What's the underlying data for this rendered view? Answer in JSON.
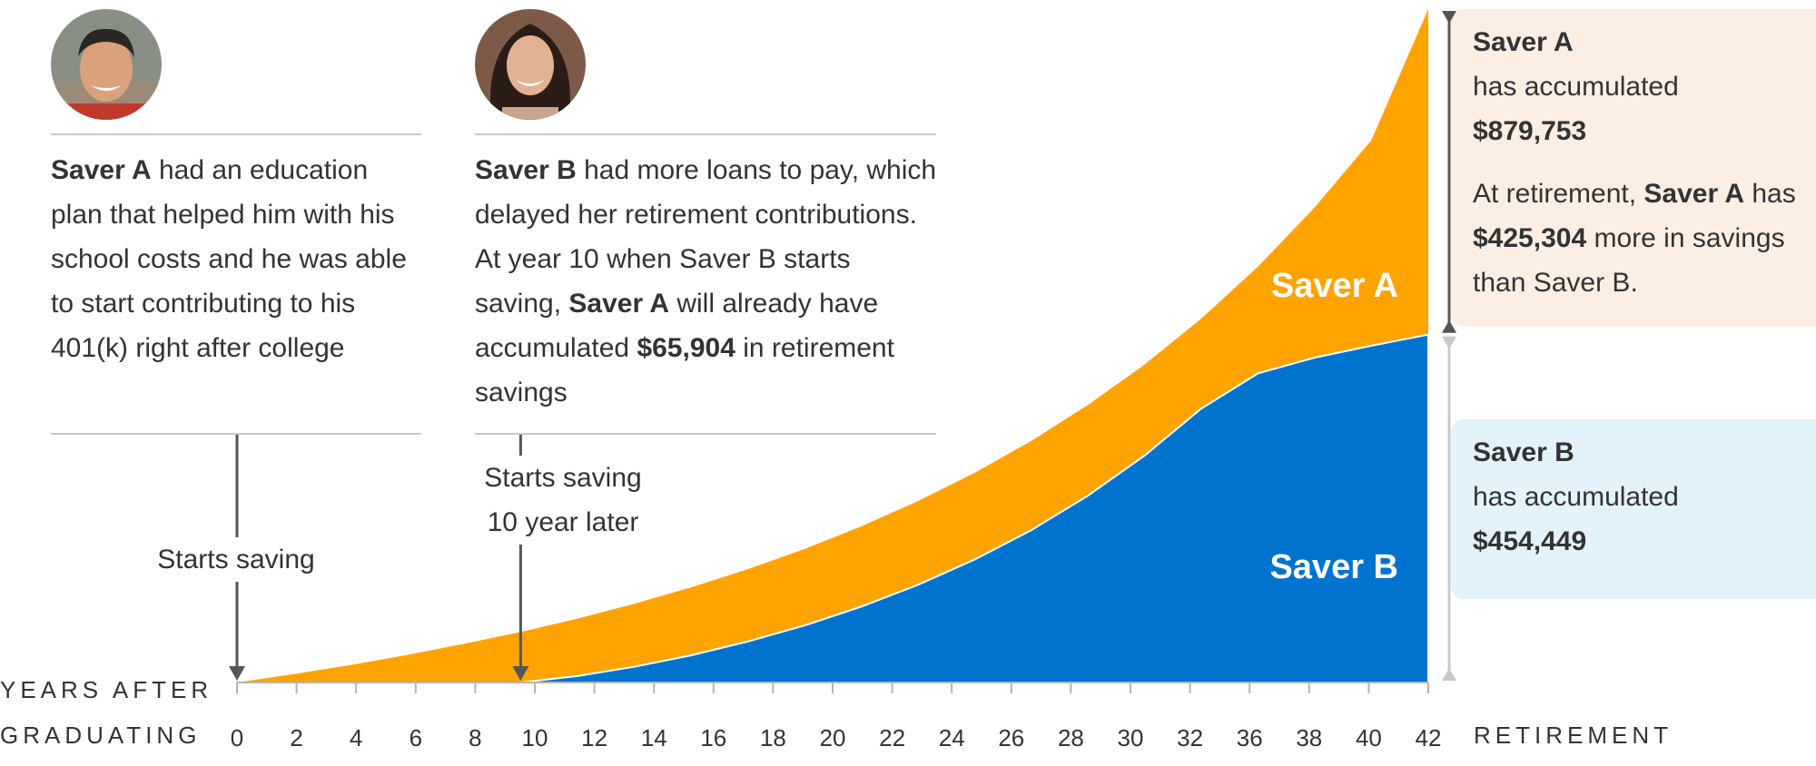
{
  "saver_a_story": {
    "name": "Saver A",
    "text": " had an education plan that helped him with his school costs and he was able to start contributing to his 401(k) right after college"
  },
  "saver_b_story": {
    "name": "Saver B",
    "text1": " had more loans to pay, which delayed her retirement contributions. At year 10 when Saver B starts saving, ",
    "bold": "Saver A",
    "text2": " will already have accumulated ",
    "amount": "$65,904",
    "text3": " in retirement savings"
  },
  "annotations": {
    "start_a": "Starts saving",
    "start_b_line1": "Starts saving",
    "start_b_line2": "10 year later"
  },
  "result_a": {
    "name": "Saver A",
    "line1": "has accumulated",
    "amount": "$879,753",
    "note_pre": "At retirement, ",
    "note_bold": "Saver A",
    "note_mid": " has ",
    "note_amount": "$425,304",
    "note_post": " more in savings than Saver B."
  },
  "result_b": {
    "name": "Saver B",
    "line1": "has accumulated",
    "amount": "$454,449"
  },
  "axis": {
    "xlabel_line1": "YEARS AFTER",
    "xlabel_line2": "GRADUATING",
    "end_label": "RETIREMENT"
  },
  "colors": {
    "saver_a": "#FFA300",
    "saver_b": "#0073CF",
    "box_a": "#FDEEE3",
    "box_b": "#E3F3FB"
  },
  "chart_data": {
    "type": "area",
    "x_tick_labels": [
      "0",
      "2",
      "4",
      "6",
      "8",
      "10",
      "12",
      "14",
      "16",
      "18",
      "20",
      "22",
      "24",
      "26",
      "28",
      "30",
      "32",
      "36",
      "38",
      "40",
      "42"
    ],
    "xlim": [
      0,
      42
    ],
    "series": [
      {
        "name": "Saver A",
        "x": [
          0,
          2,
          4,
          6,
          8,
          10,
          12,
          14,
          16,
          18,
          20,
          22,
          24,
          26,
          28,
          30,
          32,
          34,
          36,
          38,
          40,
          42
        ],
        "values": [
          0,
          10908,
          22894,
          36066,
          50540,
          65904,
          83430,
          102700,
          124100,
          147900,
          174300,
          203800,
          236800,
          273800,
          315500,
          362400,
          415400,
          475400,
          543500,
          620800,
          708800,
          879753
        ]
      },
      {
        "name": "Saver B",
        "x": [
          10,
          12,
          14,
          16,
          18,
          20,
          22,
          24,
          26,
          28,
          30,
          32,
          34,
          36,
          38,
          40,
          42
        ],
        "values": [
          0,
          8400,
          20500,
          35500,
          53500,
          74500,
          99000,
          127500,
          160500,
          199000,
          244000,
          296500,
          358000,
          404000,
          424500,
          440000,
          454449
        ]
      }
    ],
    "ylim": [
      0,
      879753
    ]
  }
}
